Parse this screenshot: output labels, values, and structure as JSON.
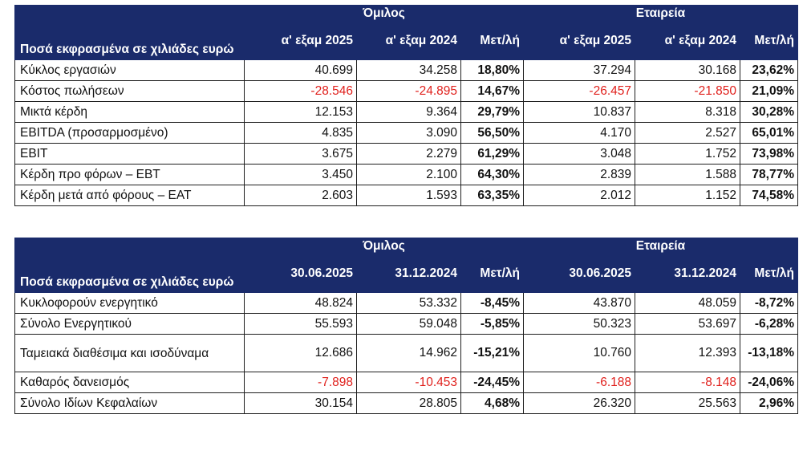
{
  "table1": {
    "group_left": "Όμιλος",
    "group_right": "Εταιρεία",
    "title": "Ποσά εκφρασμένα σε χιλιάδες ευρώ",
    "columns": [
      "α' εξαμ 2025",
      "α' εξαμ 2024",
      "Μετ/λή",
      "α' εξαμ 2025",
      "α' εξαμ 2024",
      "Μετ/λή"
    ],
    "rows": [
      {
        "label": "Κύκλος εργασιών",
        "g1": "40.699",
        "g2": "34.258",
        "gp": "18,80%",
        "c1": "37.294",
        "c2": "30.168",
        "cp": "23,62%"
      },
      {
        "label": "Κόστος πωλήσεων",
        "g1": "-28.546",
        "g2": "-24.895",
        "gp": "14,67%",
        "c1": "-26.457",
        "c2": "-21.850",
        "cp": "21,09%"
      },
      {
        "label": "Μικτά κέρδη",
        "g1": "12.153",
        "g2": "9.364",
        "gp": "29,79%",
        "c1": "10.837",
        "c2": "8.318",
        "cp": "30,28%"
      },
      {
        "label": "EBITDA (προσαρμοσμένο)",
        "g1": "4.835",
        "g2": "3.090",
        "gp": "56,50%",
        "c1": "4.170",
        "c2": "2.527",
        "cp": "65,01%"
      },
      {
        "label": "EBIT",
        "g1": "3.675",
        "g2": "2.279",
        "gp": "61,29%",
        "c1": "3.048",
        "c2": "1.752",
        "cp": "73,98%"
      },
      {
        "label": "Κέρδη προ φόρων – EBT",
        "g1": "3.450",
        "g2": "2.100",
        "gp": "64,30%",
        "c1": "2.839",
        "c2": "1.588",
        "cp": "78,77%"
      },
      {
        "label": "Κέρδη μετά από φόρους – EAT",
        "g1": "2.603",
        "g2": "1.593",
        "gp": "63,35%",
        "c1": "2.012",
        "c2": "1.152",
        "cp": "74,58%"
      }
    ]
  },
  "table2": {
    "group_left": "Όμιλος",
    "group_right": "Εταιρεία",
    "title": "Ποσά εκφρασμένα σε χιλιάδες ευρώ",
    "columns": [
      "30.06.2025",
      "31.12.2024",
      "Μετ/λή",
      "30.06.2025",
      "31.12.2024",
      "Μετ/λή"
    ],
    "rows": [
      {
        "label": "Κυκλοφορούν ενεργητικό",
        "g1": "48.824",
        "g2": "53.332",
        "gp": "-8,45%",
        "c1": "43.870",
        "c2": "48.059",
        "cp": "-8,72%"
      },
      {
        "label": "Σύνολο Ενεργητικού",
        "g1": "55.593",
        "g2": "59.048",
        "gp": "-5,85%",
        "c1": "50.323",
        "c2": "53.697",
        "cp": "-6,28%"
      },
      {
        "label": "Ταμειακά διαθέσιμα και ισοδύναμα",
        "g1": "12.686",
        "g2": "14.962",
        "gp": "-15,21%",
        "c1": "10.760",
        "c2": "12.393",
        "cp": "-13,18%"
      },
      {
        "label": "Καθαρός δανεισμός",
        "g1": "-7.898",
        "g2": "-10.453",
        "gp": "-24,45%",
        "c1": "-6.188",
        "c2": "-8.148",
        "cp": "-24,06%"
      },
      {
        "label": "Σύνολο Ιδίων Κεφαλαίων",
        "g1": "30.154",
        "g2": "28.805",
        "gp": "4,68%",
        "c1": "26.320",
        "c2": "25.563",
        "cp": "2,96%"
      }
    ]
  },
  "colors": {
    "header_bg": "#1a2b6b",
    "header_text": "#ffffff",
    "negative": "#e0201c"
  }
}
